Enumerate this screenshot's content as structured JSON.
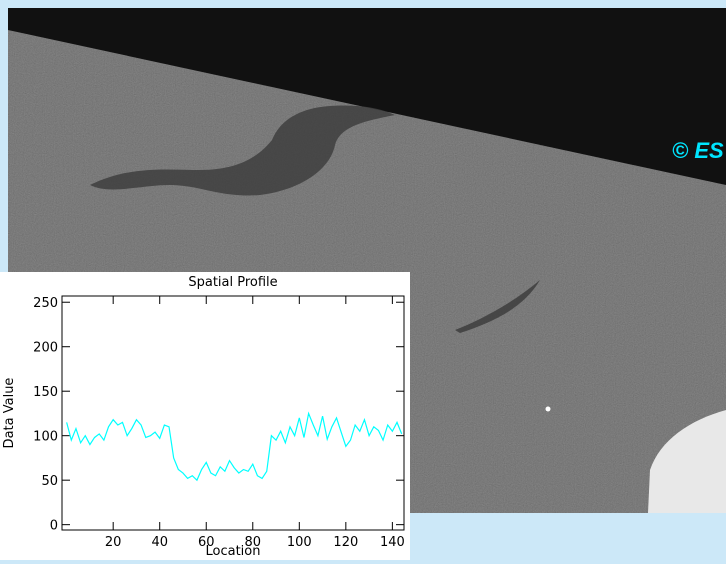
{
  "watermark": "© ES",
  "chart_data": {
    "type": "line",
    "title": "Spatial Profile",
    "xlabel": "Location",
    "ylabel": "Data Value",
    "color": "#00ffff",
    "x": [
      0,
      2,
      4,
      6,
      8,
      10,
      12,
      14,
      16,
      18,
      20,
      22,
      24,
      26,
      28,
      30,
      32,
      34,
      36,
      38,
      40,
      42,
      44,
      46,
      48,
      50,
      52,
      54,
      56,
      58,
      60,
      62,
      64,
      66,
      68,
      70,
      72,
      74,
      76,
      78,
      80,
      82,
      84,
      86,
      88,
      90,
      92,
      94,
      96,
      98,
      100,
      102,
      104,
      106,
      108,
      110,
      112,
      114,
      116,
      118,
      120,
      122,
      124,
      126,
      128,
      130,
      132,
      134,
      136,
      138,
      140,
      142,
      144
    ],
    "values": [
      115,
      95,
      108,
      92,
      100,
      90,
      98,
      102,
      95,
      110,
      118,
      112,
      115,
      100,
      108,
      118,
      112,
      98,
      100,
      104,
      97,
      112,
      110,
      75,
      62,
      58,
      52,
      55,
      50,
      62,
      70,
      58,
      55,
      65,
      60,
      72,
      64,
      58,
      62,
      60,
      68,
      55,
      52,
      60,
      100,
      95,
      105,
      92,
      110,
      100,
      120,
      98,
      125,
      112,
      100,
      122,
      96,
      110,
      120,
      104,
      88,
      95,
      112,
      105,
      118,
      100,
      110,
      106,
      95,
      112,
      105,
      115,
      102
    ],
    "xlim": [
      -2,
      145
    ],
    "ylim": [
      -6,
      257
    ],
    "xticks": [
      20,
      40,
      60,
      80,
      100,
      120,
      140
    ],
    "yticks": [
      0,
      50,
      100,
      150,
      200,
      250
    ]
  }
}
